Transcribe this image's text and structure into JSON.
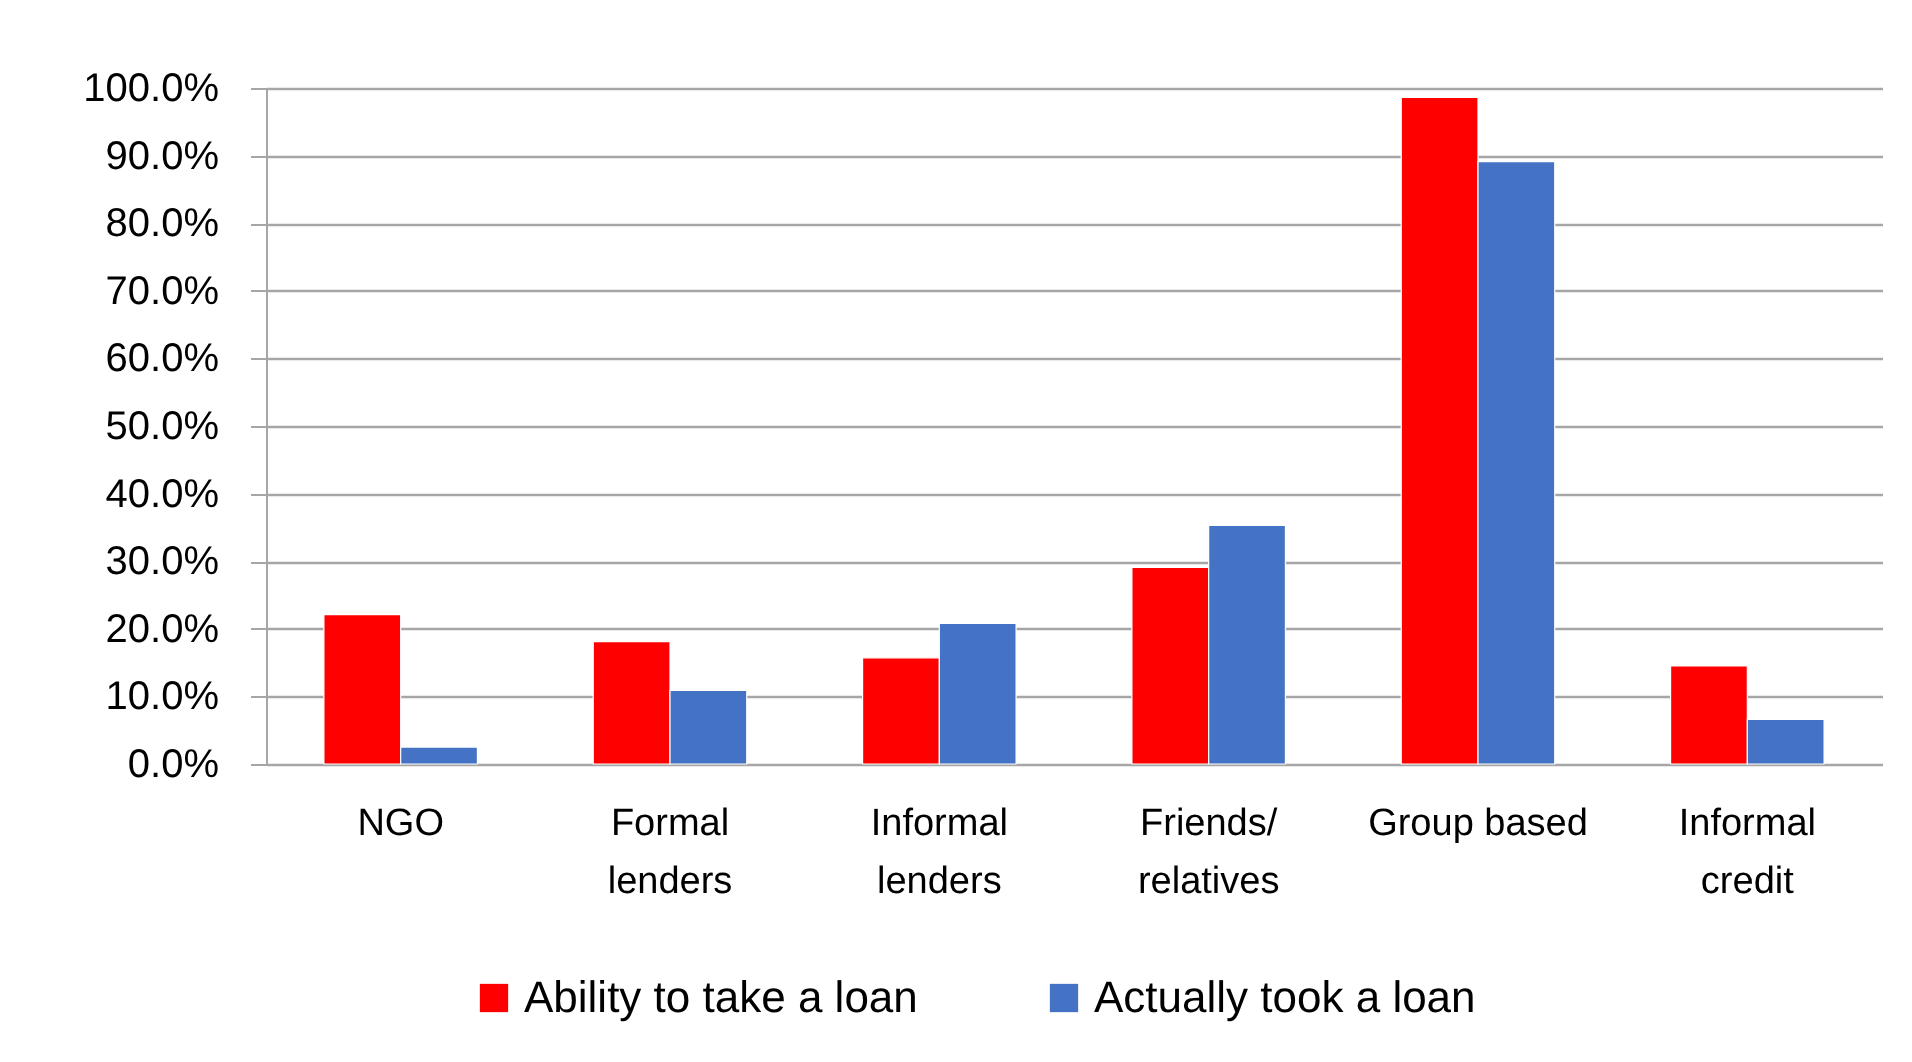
{
  "chart_data": {
    "type": "bar",
    "categories": [
      "NGO",
      "Formal lenders",
      "Informal lenders",
      "Friends/ relatives",
      "Group based",
      "Informal credit"
    ],
    "series": [
      {
        "name": "Ability to take a loan",
        "color": "#ff0000",
        "values": [
          22.1,
          18.1,
          15.7,
          29.1,
          98.6,
          14.5
        ]
      },
      {
        "name": "Actually took a loan",
        "color": "#4472c4",
        "values": [
          2.5,
          10.9,
          20.8,
          35.3,
          89.1,
          6.6
        ]
      }
    ],
    "ylim": [
      0,
      100
    ],
    "yticks": [
      {
        "value": 0,
        "label": "0.0%"
      },
      {
        "value": 10,
        "label": "10.0%"
      },
      {
        "value": 20,
        "label": "20.0%"
      },
      {
        "value": 30,
        "label": "30.0%"
      },
      {
        "value": 40,
        "label": "40.0%"
      },
      {
        "value": 50,
        "label": "50.0%"
      },
      {
        "value": 60,
        "label": "60.0%"
      },
      {
        "value": 70,
        "label": "70.0%"
      },
      {
        "value": 80,
        "label": "80.0%"
      },
      {
        "value": 90,
        "label": "90.0%"
      },
      {
        "value": 100,
        "label": "100.0%"
      }
    ],
    "grid": "y",
    "legend": "bottom"
  }
}
